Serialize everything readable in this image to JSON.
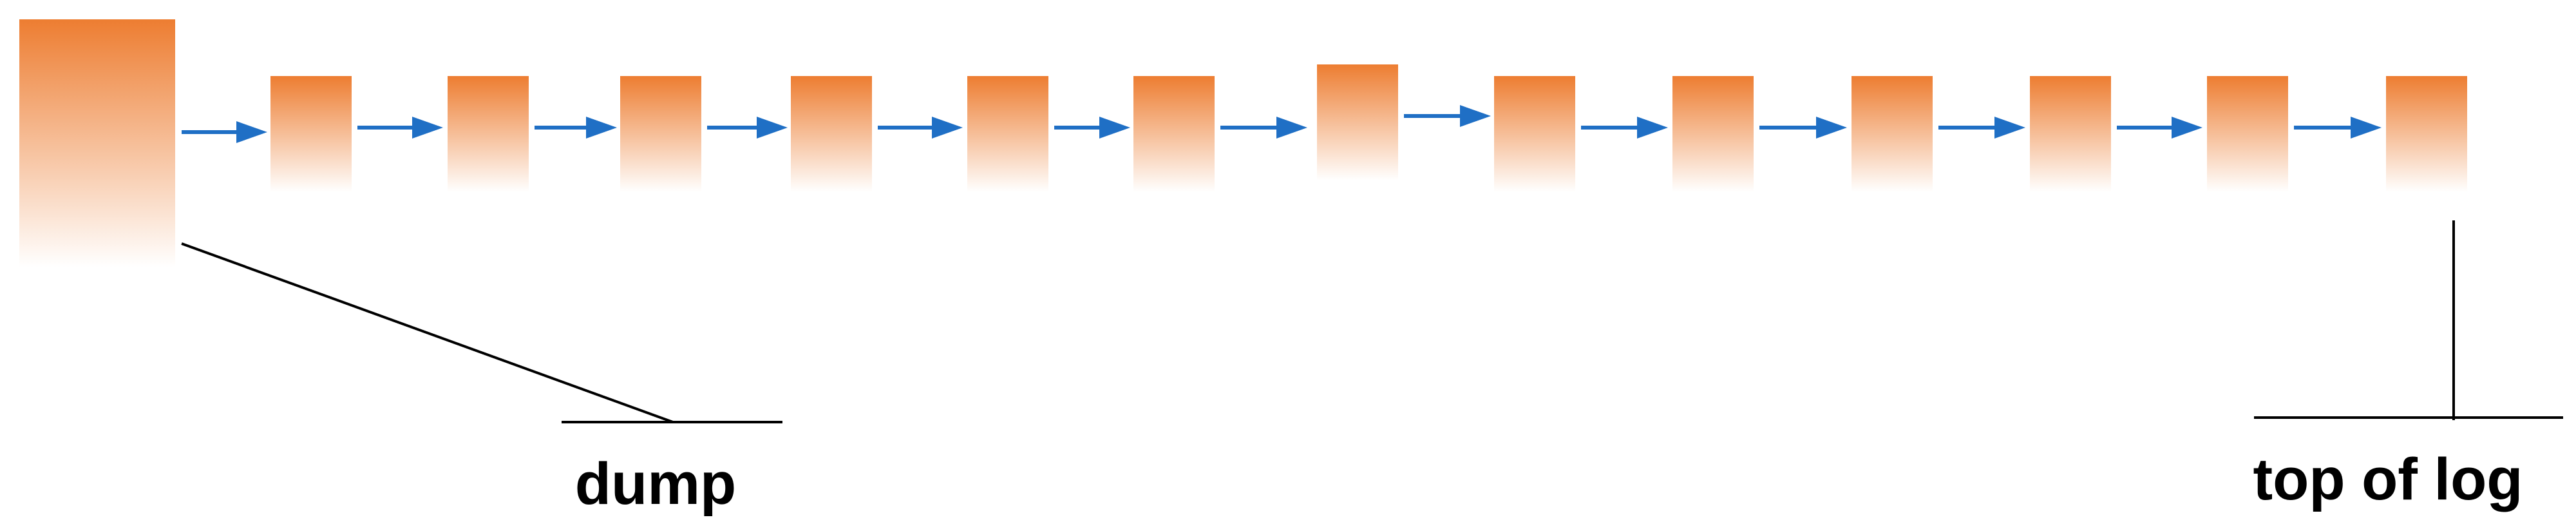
{
  "diagram": {
    "block_color": "#ED7D31",
    "arrow_color": "#1F6FC5",
    "line_color": "#000000",
    "labels": {
      "dump": "dump",
      "top_of_log": "top of log"
    }
  }
}
